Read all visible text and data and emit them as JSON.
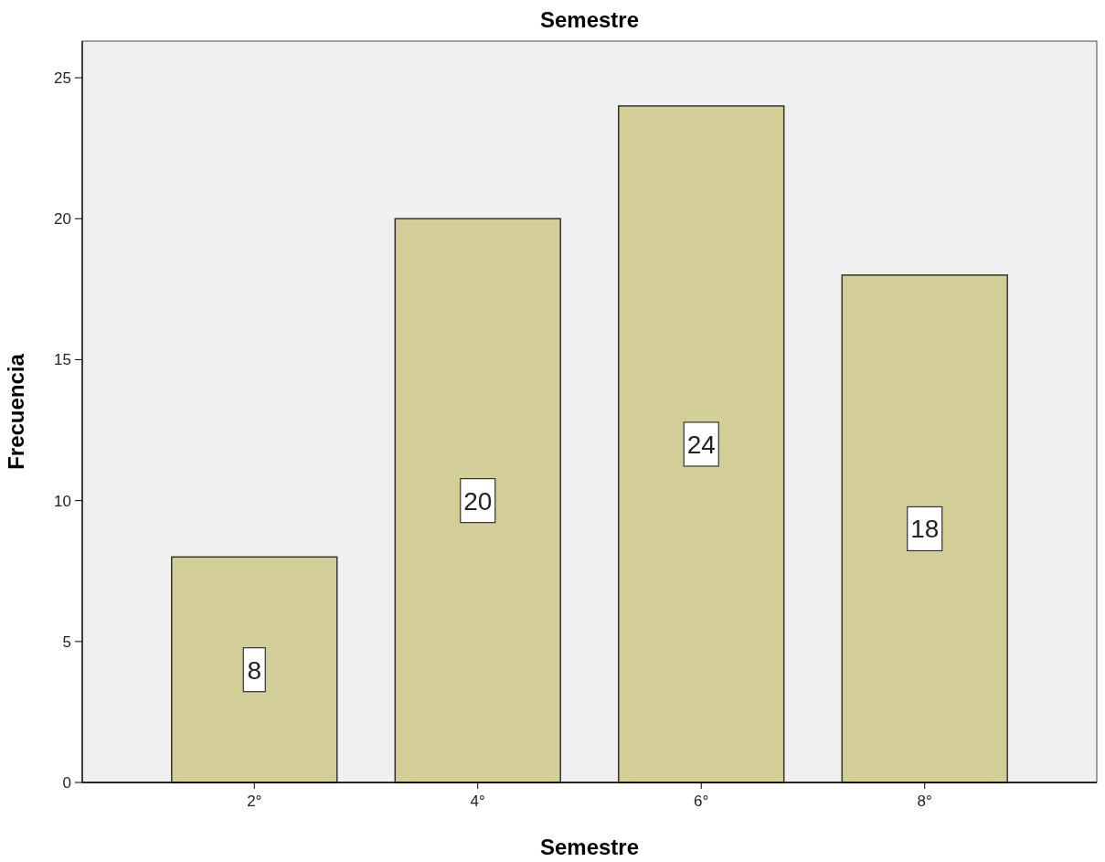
{
  "chart_data": {
    "type": "bar",
    "title": "Semestre",
    "xlabel": "Semestre",
    "ylabel": "Frecuencia",
    "categories": [
      "2°",
      "4°",
      "6°",
      "8°"
    ],
    "values": [
      8,
      20,
      24,
      18
    ],
    "color": "#d3ce97",
    "ylim": [
      0,
      26.3
    ],
    "yticks": [
      0,
      5,
      10,
      15,
      20,
      25
    ],
    "grid": false,
    "data_labels": true
  }
}
